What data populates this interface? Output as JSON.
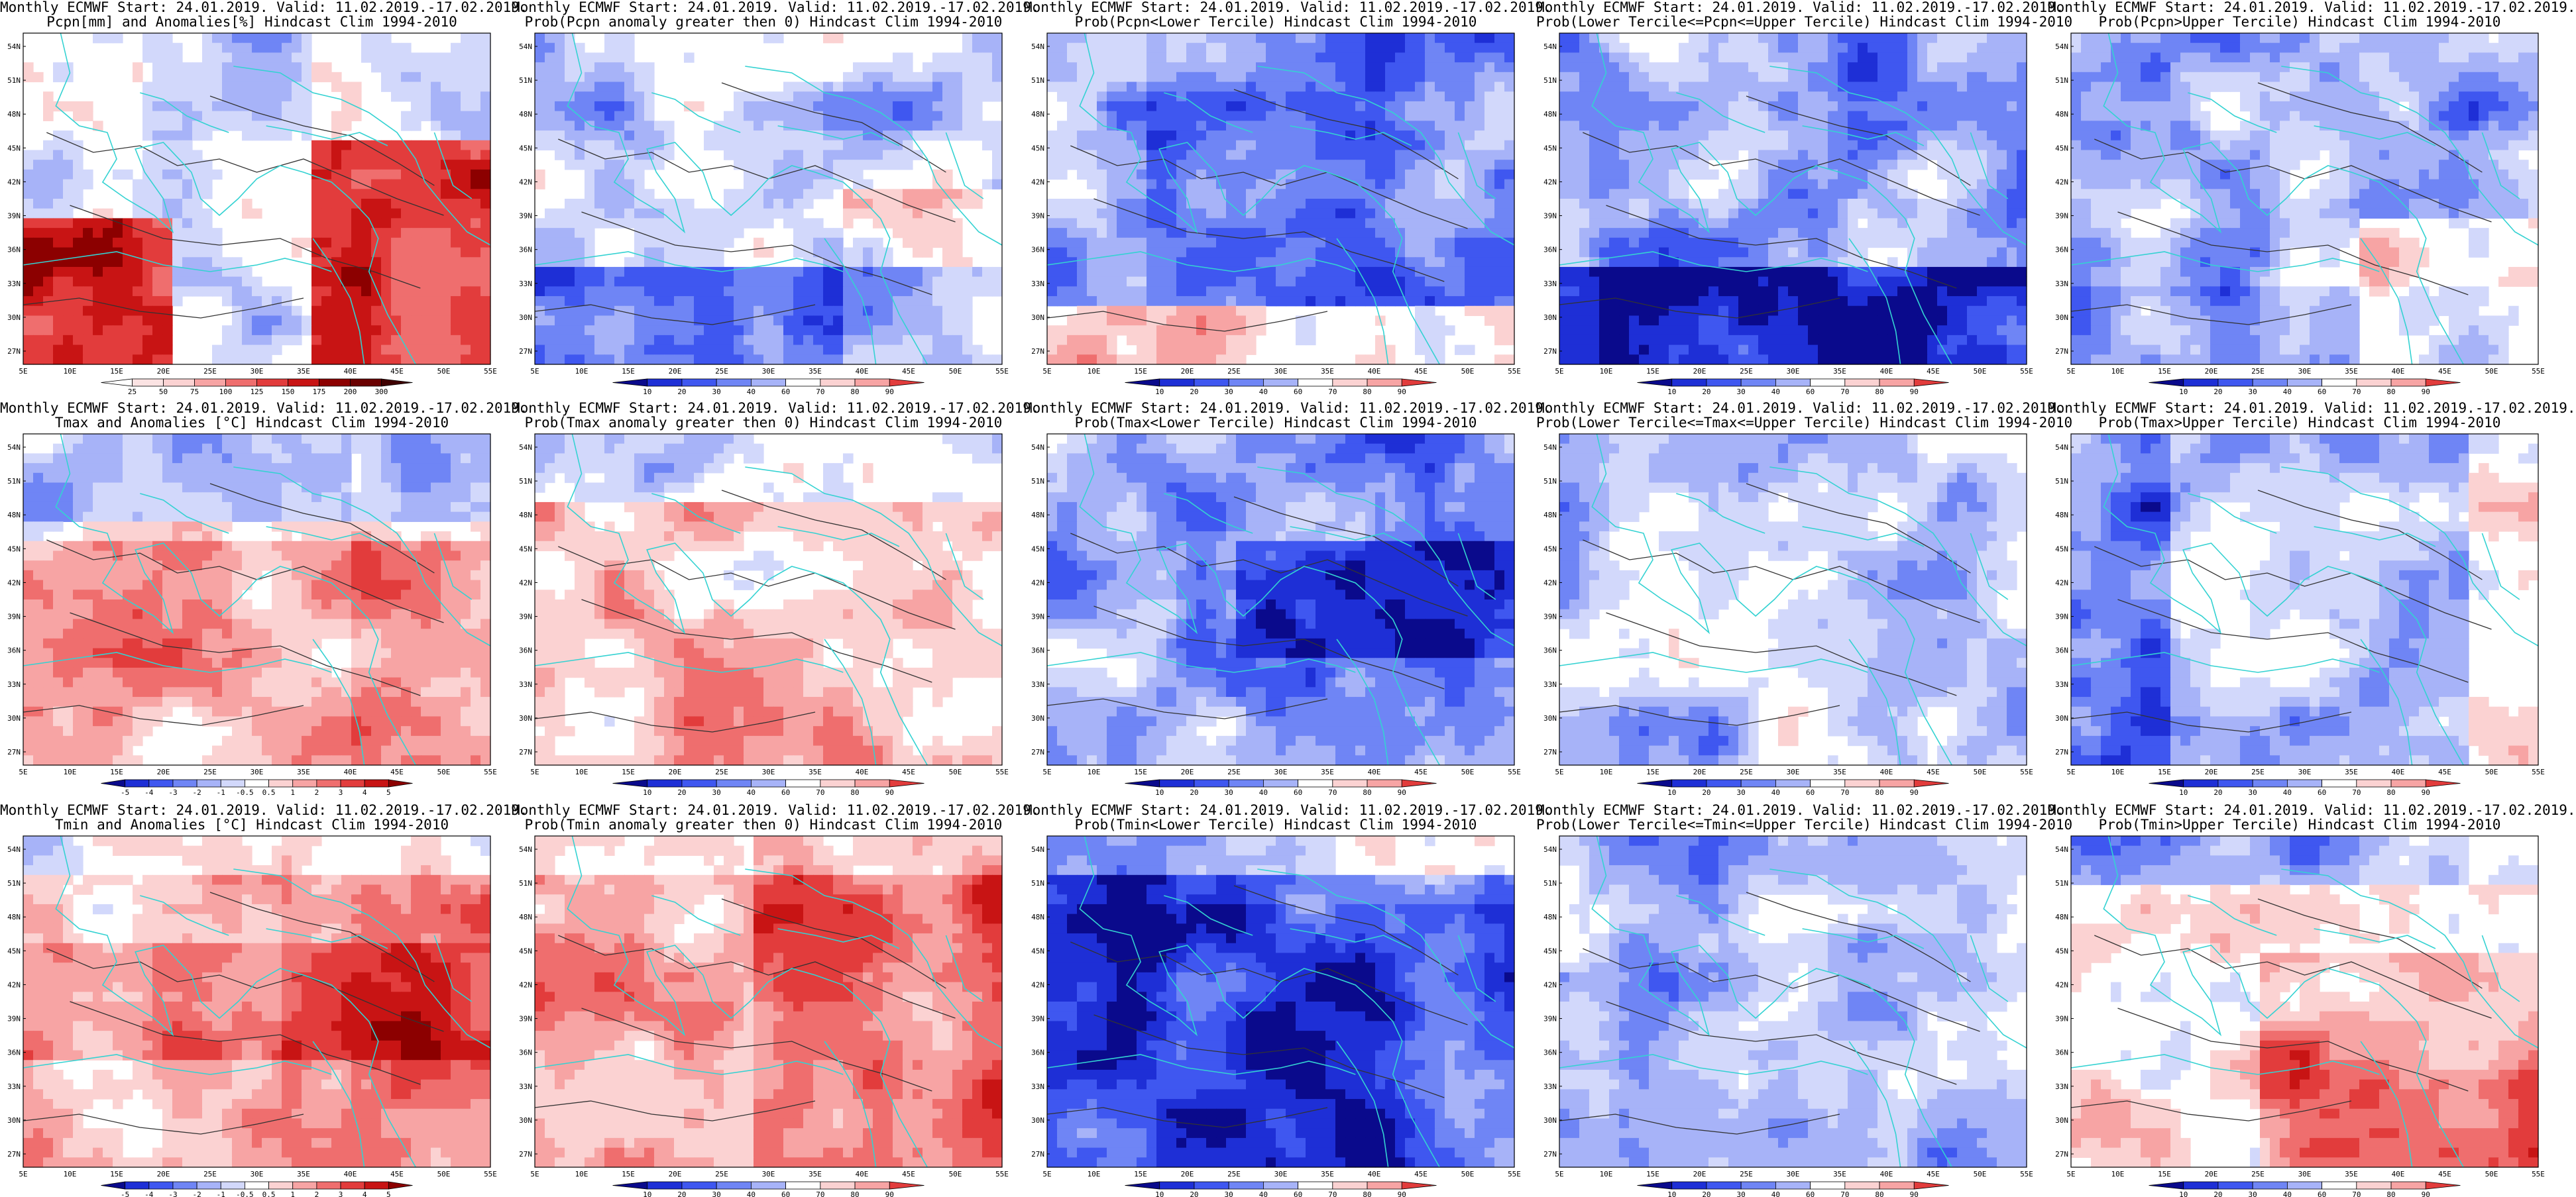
{
  "rows": [
    {
      "variable": "precipitation",
      "panels": [
        {
          "title1": "Monthly ECMWF Start: 24.01.2019. Valid: 11.02.2019.-17.02.2019.",
          "title2": "Pcpn[mm] and Anomalies[%] Hindcast Clim 1994-2010",
          "kind": "anom_p",
          "colorbar_labels": [
            "25",
            "50",
            "75",
            "100",
            "125",
            "150",
            "175",
            "200",
            "300"
          ]
        },
        {
          "title1": "Monthly ECMWF Start: 24.01.2019. Valid: 11.02.2019.-17.02.2019.",
          "title2": "Prob(Pcpn anomaly greater then 0) Hindcast Clim 1994-2010",
          "kind": "prob",
          "colorbar_labels": [
            "10",
            "20",
            "30",
            "40",
            "60",
            "70",
            "80",
            "90"
          ]
        },
        {
          "title1": "Monthly ECMWF Start: 24.01.2019. Valid: 11.02.2019.-17.02.2019.",
          "title2": "Prob(Pcpn<Lower Tercile) Hindcast Clim 1994-2010",
          "kind": "prob",
          "colorbar_labels": [
            "10",
            "20",
            "30",
            "40",
            "60",
            "70",
            "80",
            "90"
          ]
        },
        {
          "title1": "Monthly ECMWF Start: 24.01.2019. Valid: 11.02.2019.-17.02.2019.",
          "title2": "Prob(Lower Tercile<=Pcpn<=Upper Tercile) Hindcast Clim 1994-2010",
          "kind": "prob",
          "colorbar_labels": [
            "10",
            "20",
            "30",
            "40",
            "60",
            "70",
            "80",
            "90"
          ]
        },
        {
          "title1": "Monthly ECMWF Start: 24.01.2019. Valid: 11.02.2019.-17.02.2019.",
          "title2": "Prob(Pcpn>Upper Tercile) Hindcast Clim 1994-2010",
          "kind": "prob",
          "colorbar_labels": [
            "10",
            "20",
            "30",
            "40",
            "60",
            "70",
            "80",
            "90"
          ]
        }
      ]
    },
    {
      "variable": "tmax",
      "panels": [
        {
          "title1": "Monthly ECMWF Start: 24.01.2019. Valid: 11.02.2019.-17.02.2019.",
          "title2": "Tmax and Anomalies [°C] Hindcast Clim 1994-2010",
          "kind": "anom_t",
          "colorbar_labels": [
            "-5",
            "-4",
            "-3",
            "-2",
            "-1",
            "-0.5",
            "0.5",
            "1",
            "2",
            "3",
            "4",
            "5"
          ]
        },
        {
          "title1": "Monthly ECMWF Start: 24.01.2019. Valid: 11.02.2019.-17.02.2019.",
          "title2": "Prob(Tmax anomaly greater then 0) Hindcast Clim 1994-2010",
          "kind": "prob",
          "colorbar_labels": [
            "10",
            "20",
            "30",
            "40",
            "60",
            "70",
            "80",
            "90"
          ]
        },
        {
          "title1": "Monthly ECMWF Start: 24.01.2019. Valid: 11.02.2019.-17.02.2019.",
          "title2": "Prob(Tmax<Lower Tercile) Hindcast Clim 1994-2010",
          "kind": "prob",
          "colorbar_labels": [
            "10",
            "20",
            "30",
            "40",
            "60",
            "70",
            "80",
            "90"
          ]
        },
        {
          "title1": "Monthly ECMWF Start: 24.01.2019. Valid: 11.02.2019.-17.02.2019.",
          "title2": "Prob(Lower Tercile<=Tmax<=Upper Tercile) Hindcast Clim 1994-2010",
          "kind": "prob",
          "colorbar_labels": [
            "10",
            "20",
            "30",
            "40",
            "60",
            "70",
            "80",
            "90"
          ]
        },
        {
          "title1": "Monthly ECMWF Start: 24.01.2019. Valid: 11.02.2019.-17.02.2019.",
          "title2": "Prob(Tmax>Upper Tercile) Hindcast Clim 1994-2010",
          "kind": "prob",
          "colorbar_labels": [
            "10",
            "20",
            "30",
            "40",
            "60",
            "70",
            "80",
            "90"
          ]
        }
      ]
    },
    {
      "variable": "tmin",
      "panels": [
        {
          "title1": "Monthly ECMWF Start: 24.01.2019. Valid: 11.02.2019.-17.02.2019.",
          "title2": "Tmin and Anomalies [°C] Hindcast Clim 1994-2010",
          "kind": "anom_t",
          "colorbar_labels": [
            "-5",
            "-4",
            "-3",
            "-2",
            "-1",
            "-0.5",
            "0.5",
            "1",
            "2",
            "3",
            "4",
            "5"
          ]
        },
        {
          "title1": "Monthly ECMWF Start: 24.01.2019. Valid: 11.02.2019.-17.02.2019.",
          "title2": "Prob(Tmin anomaly greater then 0) Hindcast Clim 1994-2010",
          "kind": "prob",
          "colorbar_labels": [
            "10",
            "20",
            "30",
            "40",
            "60",
            "70",
            "80",
            "90"
          ]
        },
        {
          "title1": "Monthly ECMWF Start: 24.01.2019. Valid: 11.02.2019.-17.02.2019.",
          "title2": "Prob(Tmin<Lower Tercile) Hindcast Clim 1994-2010",
          "kind": "prob",
          "colorbar_labels": [
            "10",
            "20",
            "30",
            "40",
            "60",
            "70",
            "80",
            "90"
          ]
        },
        {
          "title1": "Monthly ECMWF Start: 24.01.2019. Valid: 11.02.2019.-17.02.2019.",
          "title2": "Prob(Lower Tercile<=Tmin<=Upper Tercile) Hindcast Clim 1994-2010",
          "kind": "prob",
          "colorbar_labels": [
            "10",
            "20",
            "30",
            "40",
            "60",
            "70",
            "80",
            "90"
          ]
        },
        {
          "title1": "Monthly ECMWF Start: 24.01.2019. Valid: 11.02.2019.-17.02.2019.",
          "title2": "Prob(Tmin>Upper Tercile) Hindcast Clim 1994-2010",
          "kind": "prob",
          "colorbar_labels": [
            "10",
            "20",
            "30",
            "40",
            "60",
            "70",
            "80",
            "90"
          ]
        }
      ]
    }
  ],
  "lat_labels": [
    "54N",
    "51N",
    "48N",
    "45N",
    "42N",
    "39N",
    "36N",
    "33N",
    "30N",
    "27N"
  ],
  "lon_labels": [
    "5E",
    "10E",
    "15E",
    "20E",
    "25E",
    "30E",
    "35E",
    "40E",
    "45E",
    "50E",
    "55E"
  ],
  "colors": {
    "blue_scale": [
      "#0a0a8c",
      "#1e2fd6",
      "#3f57f0",
      "#6f85f5",
      "#a7b3f8",
      "#d2d8fb"
    ],
    "red_scale": [
      "#fbd2d2",
      "#f7a4a4",
      "#ef6e6e",
      "#e23c3c",
      "#c81414",
      "#8c0000"
    ],
    "coast": "#34d2d2",
    "contour": "#333333"
  }
}
